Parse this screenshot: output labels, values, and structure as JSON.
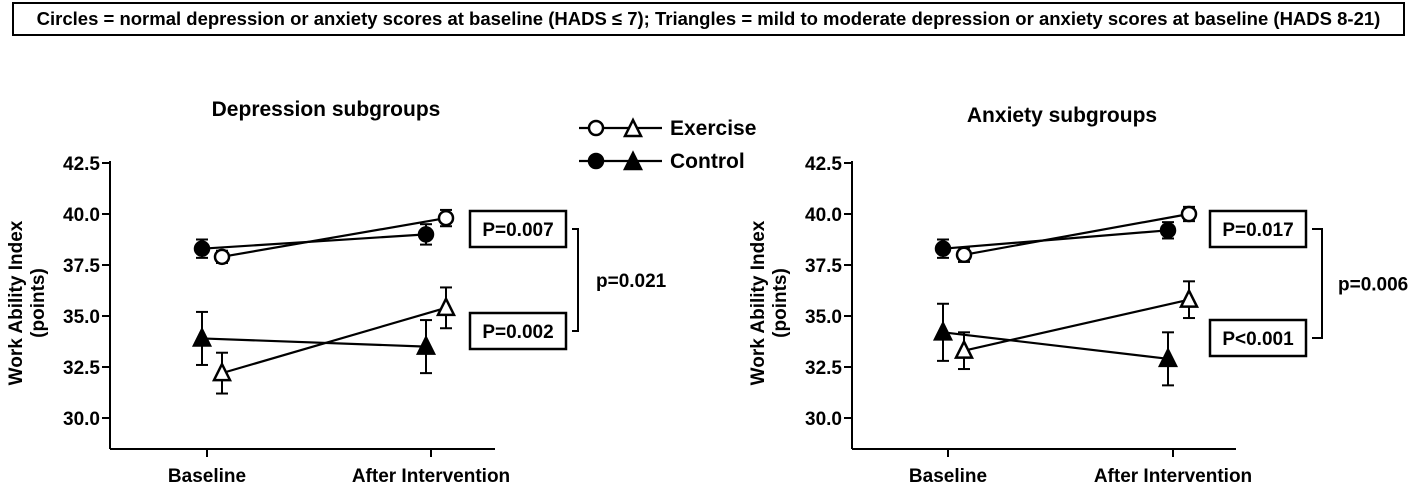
{
  "caption": "Circles = normal depression or anxiety scores at baseline (HADS ≤ 7); Triangles = mild to moderate depression or anxiety scores at baseline (HADS 8-21)",
  "legend": {
    "exercise": "Exercise",
    "control": "Control"
  },
  "chart_data": [
    {
      "type": "line",
      "title": "Depression subgroups",
      "ylabel": "Work Ability Index\n(points)",
      "xlabel": "",
      "categories": [
        "Baseline",
        "After Intervention"
      ],
      "ylim": [
        30.0,
        42.5
      ],
      "yticks": [
        "30.0",
        "32.5",
        "35.0",
        "37.5",
        "40.0",
        "42.5"
      ],
      "series": [
        {
          "name": "Exercise",
          "subgroup": "normal",
          "marker": "open-circle",
          "values": [
            37.9,
            39.8
          ],
          "errors": [
            0.3,
            0.4
          ]
        },
        {
          "name": "Control",
          "subgroup": "normal",
          "marker": "filled-circle",
          "values": [
            38.3,
            39.0
          ],
          "errors": [
            0.45,
            0.5
          ]
        },
        {
          "name": "Exercise",
          "subgroup": "mild-moderate",
          "marker": "open-triangle",
          "values": [
            32.2,
            35.4
          ],
          "errors": [
            1.0,
            1.0
          ]
        },
        {
          "name": "Control",
          "subgroup": "mild-moderate",
          "marker": "filled-triangle",
          "values": [
            33.9,
            33.5
          ],
          "errors": [
            1.3,
            1.3
          ]
        }
      ],
      "annotations": {
        "p_normal": "P=0.007",
        "p_mild": "P=0.002",
        "p_interaction": "p=0.021"
      }
    },
    {
      "type": "line",
      "title": "Anxiety subgroups",
      "ylabel": "Work Ability Index\n(points)",
      "xlabel": "",
      "categories": [
        "Baseline",
        "After Intervention"
      ],
      "ylim": [
        30.0,
        42.5
      ],
      "yticks": [
        "30.0",
        "32.5",
        "35.0",
        "37.5",
        "40.0",
        "42.5"
      ],
      "series": [
        {
          "name": "Exercise",
          "subgroup": "normal",
          "marker": "open-circle",
          "values": [
            38.0,
            40.0
          ],
          "errors": [
            0.35,
            0.35
          ]
        },
        {
          "name": "Control",
          "subgroup": "normal",
          "marker": "filled-circle",
          "values": [
            38.3,
            39.2
          ],
          "errors": [
            0.45,
            0.4
          ]
        },
        {
          "name": "Exercise",
          "subgroup": "mild-moderate",
          "marker": "open-triangle",
          "values": [
            33.3,
            35.8
          ],
          "errors": [
            0.9,
            0.9
          ]
        },
        {
          "name": "Control",
          "subgroup": "mild-moderate",
          "marker": "filled-triangle",
          "values": [
            34.2,
            32.9
          ],
          "errors": [
            1.4,
            1.3
          ]
        }
      ],
      "annotations": {
        "p_normal": "P=0.017",
        "p_mild": "P<0.001",
        "p_interaction": "p=0.006"
      }
    }
  ]
}
